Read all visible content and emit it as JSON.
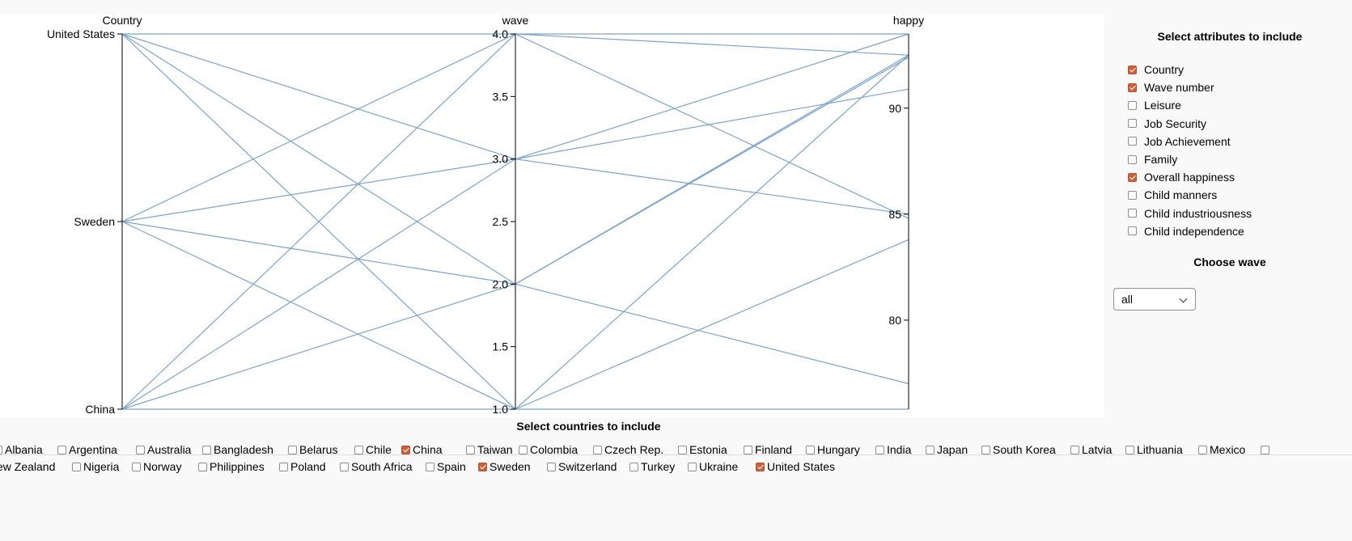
{
  "chart_data": {
    "type": "parallel-coordinates",
    "axes": [
      {
        "name": "Country",
        "type": "categorical",
        "categories": [
          "United States",
          "Sweden",
          "China"
        ]
      },
      {
        "name": "wave",
        "type": "linear",
        "domain": [
          1.0,
          4.0
        ],
        "ticks": [
          "4.0",
          "3.5",
          "3.0",
          "2.5",
          "2.0",
          "1.5",
          "1.0"
        ],
        "tick_values": [
          4.0,
          3.5,
          3.0,
          2.5,
          2.0,
          1.5,
          1.0
        ]
      },
      {
        "name": "happy",
        "type": "linear",
        "domain": [
          75.8,
          93.5
        ],
        "ticks": [
          "90",
          "85",
          "80"
        ],
        "tick_values": [
          90,
          85,
          80
        ]
      }
    ],
    "line_color": "#7da3c8",
    "records": [
      [
        "United States",
        4,
        93.5
      ],
      [
        "United States",
        3,
        90.9
      ],
      [
        "United States",
        2,
        92.4
      ],
      [
        "United States",
        1,
        75.8
      ],
      [
        "Sweden",
        4,
        92.5
      ],
      [
        "Sweden",
        3,
        85.0
      ],
      [
        "Sweden",
        2,
        77.0
      ],
      [
        "Sweden",
        1,
        92.5
      ],
      [
        "China",
        4,
        84.8
      ],
      [
        "China",
        3,
        93.5
      ],
      [
        "China",
        2,
        92.5
      ],
      [
        "China",
        1,
        83.8
      ]
    ]
  },
  "attributes": {
    "title": "Select attributes to include",
    "items": [
      {
        "label": "Country",
        "checked": true
      },
      {
        "label": "Wave number",
        "checked": true
      },
      {
        "label": "Leisure",
        "checked": false
      },
      {
        "label": "Job Security",
        "checked": false
      },
      {
        "label": "Job Achievement",
        "checked": false
      },
      {
        "label": "Family",
        "checked": false
      },
      {
        "label": "Overall happiness",
        "checked": true
      },
      {
        "label": "Child manners",
        "checked": false
      },
      {
        "label": "Child industriousness",
        "checked": false
      },
      {
        "label": "Child independence",
        "checked": false
      }
    ]
  },
  "wave": {
    "title": "Choose wave",
    "selected": "all"
  },
  "countries": {
    "title": "Select countries to include",
    "row1": [
      {
        "label": "Albania",
        "checked": false
      },
      {
        "label": "Argentina",
        "checked": false
      },
      {
        "label": "Australia",
        "checked": false
      },
      {
        "label": "Bangladesh",
        "checked": false
      },
      {
        "label": "Belarus",
        "checked": false
      },
      {
        "label": "Chile",
        "checked": false
      },
      {
        "label": "China",
        "checked": true
      },
      {
        "label": "Taiwan",
        "checked": false
      },
      {
        "label": "Colombia",
        "checked": false
      },
      {
        "label": "Czech Rep.",
        "checked": false
      },
      {
        "label": "Estonia",
        "checked": false
      },
      {
        "label": "Finland",
        "checked": false
      },
      {
        "label": "Hungary",
        "checked": false
      },
      {
        "label": "India",
        "checked": false
      },
      {
        "label": "Japan",
        "checked": false
      },
      {
        "label": "South Korea",
        "checked": false
      },
      {
        "label": "Latvia",
        "checked": false
      },
      {
        "label": "Lithuania",
        "checked": false
      },
      {
        "label": "Mexico",
        "checked": false
      },
      {
        "label": "",
        "checked": false
      }
    ],
    "row2": [
      {
        "label": "ew Zealand",
        "checked": false,
        "no_box": true
      },
      {
        "label": "Nigeria",
        "checked": false
      },
      {
        "label": "Norway",
        "checked": false
      },
      {
        "label": "Philippines",
        "checked": false
      },
      {
        "label": "Poland",
        "checked": false
      },
      {
        "label": "South Africa",
        "checked": false
      },
      {
        "label": "Spain",
        "checked": false
      },
      {
        "label": "Sweden",
        "checked": true
      },
      {
        "label": "Switzerland",
        "checked": false
      },
      {
        "label": "Turkey",
        "checked": false
      },
      {
        "label": "Ukraine",
        "checked": false
      },
      {
        "label": "United States",
        "checked": true
      }
    ]
  }
}
